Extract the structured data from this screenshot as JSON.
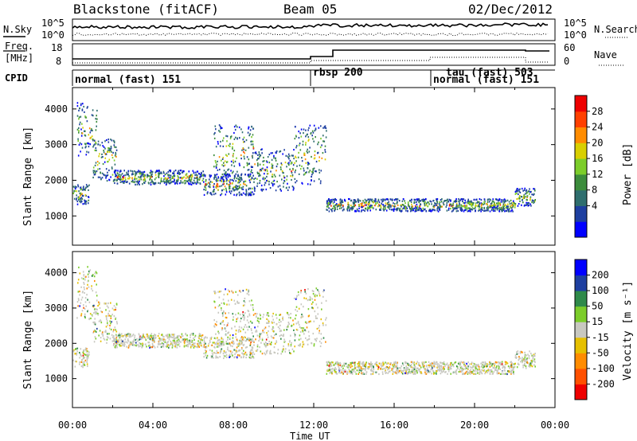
{
  "header": {
    "station": "Blackstone (fitACF)",
    "beam": "Beam 05",
    "date": "02/Dec/2012"
  },
  "noise_panel": {
    "left_label": "N.Sky",
    "left_ticks": [
      "10^5",
      "10^0"
    ],
    "right_ticks": [
      "10^5",
      "10^0"
    ],
    "right_label": "N.Search"
  },
  "freq_panel": {
    "left_label_1": "Freq.",
    "left_label_2": "[MHz]",
    "left_ticks": [
      "18",
      "8"
    ],
    "right_ticks": [
      "60",
      "0"
    ],
    "right_label": "Nave"
  },
  "cpid": {
    "label": "CPID",
    "modes": [
      {
        "name": "normal (fast) 151",
        "start_hour": 0.0
      },
      {
        "name": "rbsp 200",
        "start_hour": 12.0
      },
      {
        "name": "tau (fast) 503",
        "start_hour": 18.0
      },
      {
        "name": "normal (fast) 151",
        "start_hour": 18.0
      }
    ]
  },
  "time_axis": {
    "label": "Time UT",
    "ticks": [
      "00:00",
      "04:00",
      "08:00",
      "12:00",
      "16:00",
      "20:00",
      "00:00"
    ]
  },
  "chart_data": [
    {
      "type": "heatmap",
      "title": "Power",
      "xlabel": "Time UT",
      "ylabel": "Slant Range [km]",
      "xlim_hours": [
        0,
        24
      ],
      "ylim": [
        180,
        4600
      ],
      "yticks": [
        "1000",
        "2000",
        "3000",
        "4000"
      ],
      "colorbar": {
        "label": "Power [dB]",
        "ticks": [
          "28",
          "24",
          "20",
          "16",
          "12",
          "8",
          "4"
        ],
        "colors": [
          "#0000ff",
          "#1e3fa0",
          "#2f6e6e",
          "#3c8c3c",
          "#7ccd2a",
          "#d8cf00",
          "#ff8c00",
          "#ff4000",
          "#ee0000"
        ]
      },
      "echo_bands": [
        {
          "t": [
            0.0,
            0.8
          ],
          "r": [
            1350,
            1900
          ]
        },
        {
          "t": [
            0.2,
            1.2
          ],
          "r": [
            2700,
            4200
          ]
        },
        {
          "t": [
            1.0,
            2.2
          ],
          "r": [
            2000,
            3200
          ]
        },
        {
          "t": [
            2.0,
            6.5
          ],
          "r": [
            1900,
            2300
          ]
        },
        {
          "t": [
            6.5,
            9.0
          ],
          "r": [
            1600,
            2200
          ]
        },
        {
          "t": [
            7.0,
            9.0
          ],
          "r": [
            2000,
            3600
          ]
        },
        {
          "t": [
            9.0,
            11.0
          ],
          "r": [
            1700,
            2900
          ]
        },
        {
          "t": [
            11.0,
            12.6
          ],
          "r": [
            1900,
            3600
          ]
        },
        {
          "t": [
            12.6,
            22.0
          ],
          "r": [
            1150,
            1500
          ]
        },
        {
          "t": [
            22.0,
            23.0
          ],
          "r": [
            1300,
            1800
          ]
        }
      ]
    },
    {
      "type": "heatmap",
      "title": "Velocity",
      "xlabel": "Time UT",
      "ylabel": "Slant Range [km]",
      "xlim_hours": [
        0,
        24
      ],
      "ylim": [
        180,
        4600
      ],
      "yticks": [
        "1000",
        "2000",
        "3000",
        "4000"
      ],
      "colorbar": {
        "label": "Velocity [m s⁻¹]",
        "ticks": [
          "200",
          "100",
          "50",
          "15",
          "-15",
          "-50",
          "-100",
          "-200"
        ],
        "colors": [
          "#ee0000",
          "#ff5000",
          "#ff8c00",
          "#e6c000",
          "#c8c8c0",
          "#7ccd2a",
          "#2f8a4a",
          "#1e3fa0",
          "#0000ff"
        ]
      },
      "echo_bands": [
        {
          "t": [
            0.0,
            0.8
          ],
          "r": [
            1350,
            1900
          ]
        },
        {
          "t": [
            0.2,
            1.2
          ],
          "r": [
            2700,
            4200
          ]
        },
        {
          "t": [
            1.0,
            2.2
          ],
          "r": [
            2000,
            3200
          ]
        },
        {
          "t": [
            2.0,
            6.5
          ],
          "r": [
            1900,
            2300
          ]
        },
        {
          "t": [
            6.5,
            9.0
          ],
          "r": [
            1600,
            2200
          ]
        },
        {
          "t": [
            7.0,
            9.0
          ],
          "r": [
            2000,
            3600
          ]
        },
        {
          "t": [
            9.0,
            11.0
          ],
          "r": [
            1700,
            2900
          ]
        },
        {
          "t": [
            11.0,
            12.6
          ],
          "r": [
            1900,
            3600
          ]
        },
        {
          "t": [
            12.6,
            22.0
          ],
          "r": [
            1150,
            1500
          ]
        },
        {
          "t": [
            22.0,
            23.0
          ],
          "r": [
            1300,
            1800
          ]
        }
      ]
    }
  ]
}
